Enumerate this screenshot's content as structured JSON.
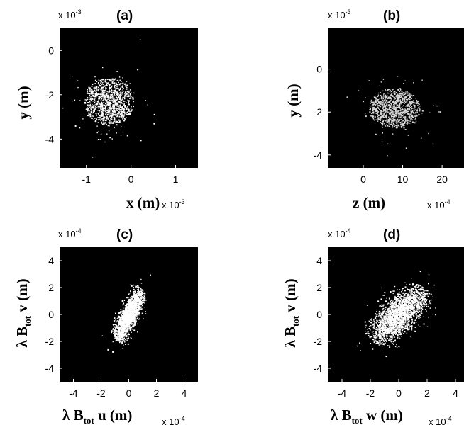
{
  "chart_data": [
    {
      "panel": "a",
      "title": "(a)",
      "type": "scatter",
      "xlabel": "x (m)",
      "ylabel": "y (m)",
      "x_scale": "x 10^-3",
      "y_scale": "x 10^-3",
      "xlim": [
        -1.6,
        1.5
      ],
      "ylim": [
        -5.3,
        1.0
      ],
      "xticks": [
        -1,
        0,
        1
      ],
      "yticks": [
        0,
        -2,
        -4
      ],
      "xtick_labels": [
        "-1",
        "0",
        "1"
      ],
      "ytick_labels": [
        "0",
        "-2",
        "-4"
      ],
      "cloud": {
        "center": [
          -0.5,
          -2.3
        ],
        "sigma": [
          0.42,
          0.82
        ],
        "corr": 0.0,
        "extent": [
          0.55,
          1.1
        ],
        "points": 1000,
        "color": "#ffffff"
      }
    },
    {
      "panel": "b",
      "title": "(b)",
      "type": "scatter",
      "xlabel": "z (m)",
      "ylabel": "y (m)",
      "x_scale": "x 10^-4",
      "y_scale": "x 10^-3",
      "xlim": [
        -9,
        27
      ],
      "ylim": [
        -4.6,
        1.9
      ],
      "xticks": [
        0,
        10,
        20
      ],
      "yticks": [
        0,
        -2,
        -4
      ],
      "xtick_labels": [
        "0",
        "10",
        "20"
      ],
      "ytick_labels": [
        "0",
        "-2",
        "-4"
      ],
      "cloud": {
        "center": [
          7.8,
          -1.8
        ],
        "sigma": [
          5.0,
          0.7
        ],
        "corr": 0.0,
        "extent": [
          6.5,
          0.92
        ],
        "points": 950,
        "color": "#d8d8d8"
      }
    },
    {
      "panel": "c",
      "title": "(c)",
      "type": "scatter",
      "xlabel": "λ B_tot u (m)",
      "ylabel": "λ B_tot v (m)",
      "x_scale": "x 10^-4",
      "y_scale": "x 10^-4",
      "xlim": [
        -5,
        5
      ],
      "ylim": [
        -5,
        5
      ],
      "xticks": [
        -4,
        -2,
        0,
        2,
        4
      ],
      "yticks": [
        4,
        2,
        0,
        -2,
        -4
      ],
      "xtick_labels": [
        "-4",
        "-2",
        "0",
        "2",
        "4"
      ],
      "ytick_labels": [
        "4",
        "2",
        "0",
        "-2",
        "-4"
      ],
      "cloud": {
        "center": [
          0.0,
          0.0
        ],
        "sigma": [
          0.6,
          1.1
        ],
        "corr": 0.82,
        "extent": [
          1.5,
          2.4
        ],
        "points": 1900,
        "color": "#ffffff"
      }
    },
    {
      "panel": "d",
      "title": "(d)",
      "type": "scatter",
      "xlabel": "λ B_tot w (m)",
      "ylabel": "λ B_tot v (m)",
      "x_scale": "x 10^-4",
      "y_scale": "x 10^-4",
      "xlim": [
        -5,
        5
      ],
      "ylim": [
        -5,
        5
      ],
      "xticks": [
        -4,
        -2,
        0,
        2,
        4
      ],
      "yticks": [
        4,
        2,
        0,
        -2,
        -4
      ],
      "xtick_labels": [
        "-4",
        "-2",
        "0",
        "2",
        "4"
      ],
      "ytick_labels": [
        "4",
        "2",
        "0",
        "-2",
        "-4"
      ],
      "cloud": {
        "center": [
          0.0,
          0.0
        ],
        "sigma": [
          1.05,
          1.1
        ],
        "corr": 0.72,
        "extent": [
          2.8,
          2.6
        ],
        "points": 2200,
        "color": "#ffffff"
      }
    }
  ]
}
